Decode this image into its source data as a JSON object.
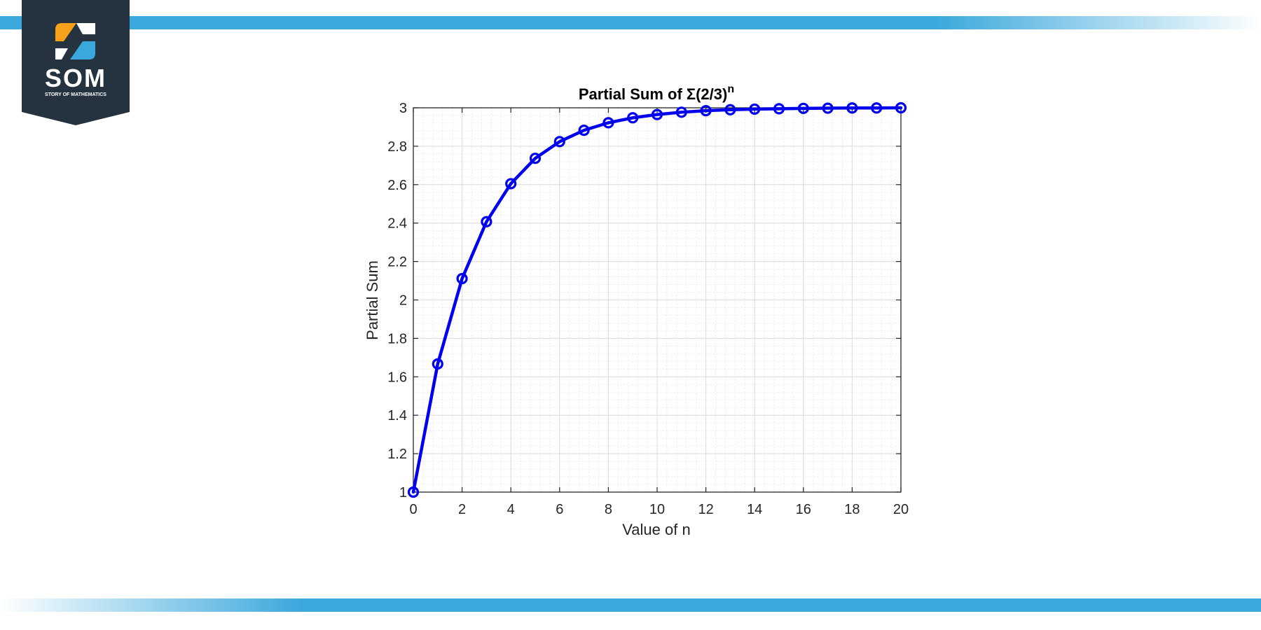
{
  "logo": {
    "name": "SOM",
    "tagline": "STORY OF MATHEMATICS",
    "colors": {
      "background": "#24333f",
      "orange": "#f7a11a",
      "blue": "#3aa8dc",
      "white": "#ffffff"
    }
  },
  "colors": {
    "band": "#3aa8dc",
    "series": "#0000ee",
    "axis": "#262626",
    "grid_major": "#dcdcdc",
    "grid_minor": "#e8e8e8",
    "text": "#262626"
  },
  "chart_data": {
    "type": "line",
    "title_main": "Partial Sum of Σ(2/3)",
    "title_sup": "n",
    "xlabel": "Value of n",
    "ylabel": "Partial Sum",
    "xlim": [
      0,
      20
    ],
    "ylim": [
      1,
      3
    ],
    "xticks": [
      0,
      2,
      4,
      6,
      8,
      10,
      12,
      14,
      16,
      18,
      20
    ],
    "yticks": [
      1,
      1.2,
      1.4,
      1.6,
      1.8,
      2,
      2.2,
      2.4,
      2.6,
      2.8,
      3
    ],
    "grid": true,
    "minor_grid": true,
    "marker": "circle",
    "x": [
      0,
      1,
      2,
      3,
      4,
      5,
      6,
      7,
      8,
      9,
      10,
      11,
      12,
      13,
      14,
      15,
      16,
      17,
      18,
      19,
      20
    ],
    "y": [
      1,
      1.667,
      2.111,
      2.407,
      2.605,
      2.737,
      2.824,
      2.883,
      2.922,
      2.948,
      2.965,
      2.977,
      2.985,
      2.99,
      2.993,
      2.995,
      2.997,
      2.998,
      2.999,
      2.999,
      3.0
    ]
  }
}
